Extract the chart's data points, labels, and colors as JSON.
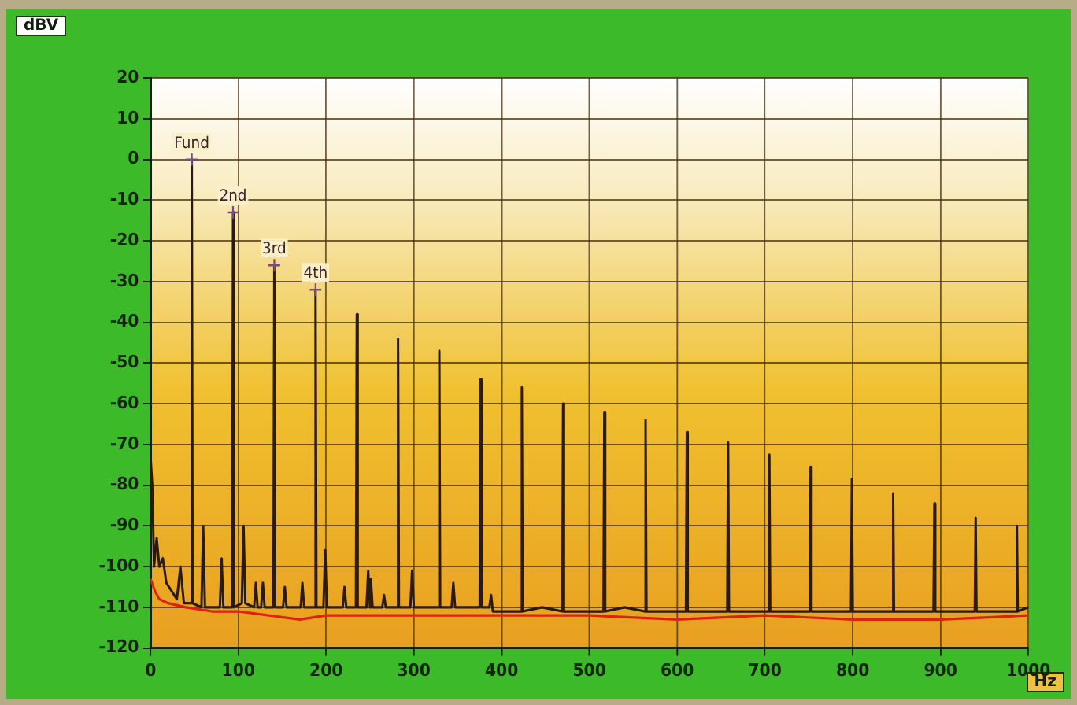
{
  "chart_data": {
    "type": "line",
    "xlabel": "Hz",
    "ylabel": "dBV",
    "xlim": [
      0,
      1000
    ],
    "xticks": [
      0,
      100,
      200,
      300,
      400,
      500,
      600,
      700,
      800,
      900,
      1000
    ],
    "ylim": [
      -120,
      20
    ],
    "yticks": [
      -120,
      -110,
      -100,
      -90,
      -80,
      -70,
      -60,
      -50,
      -40,
      -30,
      -20,
      -10,
      0,
      10,
      20
    ],
    "grid": true,
    "legend": false,
    "marker": "none",
    "line_style": "solid",
    "annotations": [
      {
        "text": "Fund",
        "x": 47,
        "y": 0
      },
      {
        "text": "2nd",
        "x": 94,
        "y": -13
      },
      {
        "text": "3rd",
        "x": 141,
        "y": -26
      },
      {
        "text": "4th",
        "x": 188,
        "y": -32
      }
    ],
    "series": [
      {
        "color": "#e02010",
        "x": [
          0,
          5,
          10,
          20,
          40,
          70,
          100,
          170,
          200,
          300,
          400,
          500,
          600,
          700,
          800,
          900,
          1000
        ],
        "values": [
          -103,
          -106,
          -108,
          -109,
          -110,
          -111,
          -111,
          -113,
          -112,
          -112,
          -112,
          -112,
          -113,
          -112,
          -113,
          -113,
          -112
        ]
      },
      {
        "color": "#2a1a10",
        "x": [
          0,
          2,
          4,
          7,
          10,
          14,
          18,
          24,
          30,
          34,
          38,
          46,
          47,
          48,
          58,
          60,
          62,
          79,
          81,
          83,
          93,
          94,
          95,
          104,
          106,
          108,
          118,
          120,
          122,
          126,
          128,
          130,
          140,
          141,
          142,
          151,
          153,
          155,
          171,
          173,
          175,
          187,
          188,
          189,
          197,
          199,
          201,
          219,
          221,
          223,
          234,
          235,
          236,
          246,
          248,
          250,
          251,
          253,
          264,
          266,
          268,
          281,
          282,
          283,
          296,
          298,
          300,
          328,
          329,
          330,
          343,
          345,
          347,
          375,
          376,
          377,
          386,
          388,
          390,
          422,
          423,
          424,
          446,
          469,
          470,
          471,
          516,
          517,
          518,
          540,
          563,
          564,
          565,
          610,
          611,
          612,
          657,
          658,
          659,
          704,
          705,
          706,
          751,
          752,
          753,
          798,
          799,
          800,
          845,
          846,
          847,
          892,
          893,
          894,
          939,
          940,
          941,
          986,
          987,
          988,
          1000
        ],
        "values": [
          -73,
          -80,
          -100,
          -93,
          -100,
          -98,
          -104,
          -106,
          -108,
          -100,
          -109,
          -109,
          0,
          -109,
          -110,
          -90,
          -110,
          -110,
          -98,
          -110,
          -110,
          -13,
          -110,
          -109,
          -90,
          -109,
          -110,
          -104,
          -110,
          -110,
          -104,
          -110,
          -110,
          -26,
          -110,
          -110,
          -105,
          -110,
          -110,
          -104,
          -110,
          -110,
          -32,
          -110,
          -110,
          -96,
          -110,
          -110,
          -105,
          -110,
          -110,
          -38,
          -110,
          -110,
          -101,
          -110,
          -103,
          -110,
          -110,
          -107,
          -110,
          -110,
          -44,
          -110,
          -110,
          -101,
          -110,
          -110,
          -47,
          -110,
          -110,
          -104,
          -110,
          -110,
          -54,
          -110,
          -110,
          -107,
          -111,
          -111,
          -56,
          -111,
          -110,
          -111,
          -60,
          -111,
          -111,
          -62,
          -111,
          -110,
          -111,
          -64,
          -111,
          -111,
          -67,
          -111,
          -111,
          -69.5,
          -111,
          -111,
          -72.5,
          -111,
          -111,
          -75.5,
          -111,
          -111,
          -78.5,
          -111,
          -111,
          -82,
          -111,
          -111,
          -84.5,
          -111,
          -111,
          -88,
          -111,
          -111,
          -90,
          -111,
          -110
        ]
      }
    ]
  }
}
